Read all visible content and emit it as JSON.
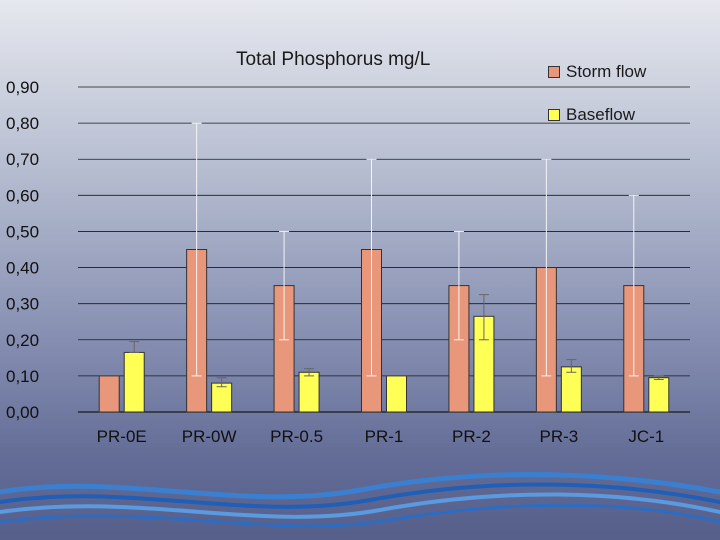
{
  "chart_data": {
    "type": "bar",
    "title": "Total Phosphorus mg/L",
    "categories": [
      "PR-0E",
      "PR-0W",
      "PR-0.5",
      "PR-1",
      "PR-2",
      "PR-3",
      "JC-1"
    ],
    "series": [
      {
        "name": "Storm flow",
        "color": "#e8977a",
        "values": [
          0.1,
          0.45,
          0.35,
          0.45,
          0.35,
          0.4,
          0.35
        ],
        "error_low": [
          0.1,
          0.1,
          0.2,
          0.1,
          0.2,
          0.1,
          0.1
        ],
        "error_high": [
          0.1,
          0.8,
          0.5,
          0.7,
          0.5,
          0.7,
          0.6
        ]
      },
      {
        "name": "Baseflow",
        "color": "#ffff55",
        "values": [
          0.165,
          0.08,
          0.11,
          0.1,
          0.265,
          0.125,
          0.095
        ],
        "error_low": [
          0.165,
          0.07,
          0.1,
          0.1,
          0.2,
          0.11,
          0.09
        ],
        "error_high": [
          0.195,
          0.095,
          0.12,
          0.1,
          0.325,
          0.145,
          0.1
        ]
      }
    ],
    "ylim": [
      0,
      0.9
    ],
    "yticks": [
      "0,00",
      "0,10",
      "0,20",
      "0,30",
      "0,40",
      "0,50",
      "0,60",
      "0,70",
      "0,80",
      "0,90"
    ],
    "grid": true,
    "legend_position": "top-right"
  }
}
